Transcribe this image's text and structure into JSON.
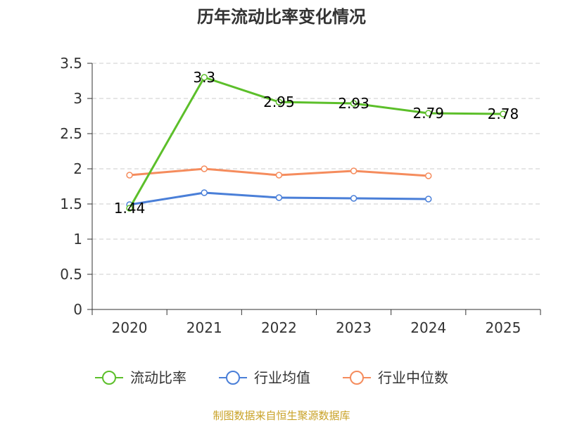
{
  "chart_data": {
    "type": "line",
    "title": "历年流动比率变化情况",
    "categories": [
      "2020",
      "2021",
      "2022",
      "2023",
      "2024",
      "2025"
    ],
    "y_ticks": [
      "0",
      "0.5",
      "1",
      "1.5",
      "2",
      "2.5",
      "3",
      "3.5"
    ],
    "ylim": [
      0,
      3.5
    ],
    "grid": true,
    "legend_position": "bottom",
    "series": [
      {
        "name": "流动比率",
        "color": "#5cbf2a",
        "values": [
          1.44,
          3.3,
          2.95,
          2.93,
          2.79,
          2.78
        ],
        "labels": [
          "1.44",
          "3.3",
          "2.95",
          "2.93",
          "2.79",
          "2.78"
        ]
      },
      {
        "name": "行业均值",
        "color": "#4a7fd8",
        "values": [
          1.49,
          1.66,
          1.59,
          1.58,
          1.57,
          null
        ]
      },
      {
        "name": "行业中位数",
        "color": "#f58c5d",
        "values": [
          1.91,
          2.0,
          1.91,
          1.97,
          1.9,
          null
        ]
      }
    ],
    "source": "制图数据来自恒生聚源数据库"
  }
}
